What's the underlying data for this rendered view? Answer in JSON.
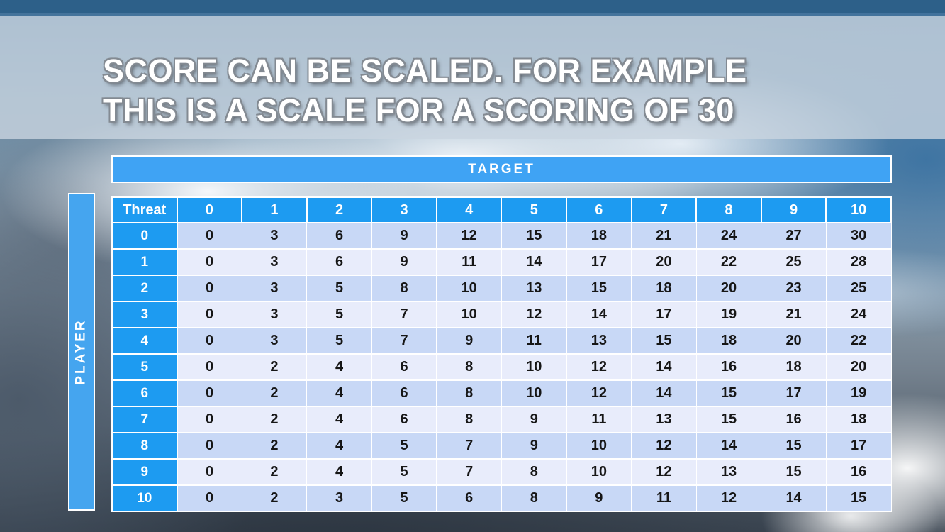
{
  "slide": {
    "title_line1": "SCORE CAN BE SCALED. FOR EXAMPLE",
    "title_line2": "THIS IS A SCALE FOR A SCORING OF 30"
  },
  "matrix": {
    "target_label": "TARGET",
    "player_label": "PLAYER",
    "corner_label": "Threat",
    "column_headers": [
      "0",
      "1",
      "2",
      "3",
      "4",
      "5",
      "6",
      "7",
      "8",
      "9",
      "10"
    ],
    "row_headers": [
      "0",
      "1",
      "2",
      "3",
      "4",
      "5",
      "6",
      "7",
      "8",
      "9",
      "10"
    ],
    "rows": [
      [
        0,
        3,
        6,
        9,
        12,
        15,
        18,
        21,
        24,
        27,
        30
      ],
      [
        0,
        3,
        6,
        9,
        11,
        14,
        17,
        20,
        22,
        25,
        28
      ],
      [
        0,
        3,
        5,
        8,
        10,
        13,
        15,
        18,
        20,
        23,
        25
      ],
      [
        0,
        3,
        5,
        7,
        10,
        12,
        14,
        17,
        19,
        21,
        24
      ],
      [
        0,
        3,
        5,
        7,
        9,
        11,
        13,
        15,
        18,
        20,
        22
      ],
      [
        0,
        2,
        4,
        6,
        8,
        10,
        12,
        14,
        16,
        18,
        20
      ],
      [
        0,
        2,
        4,
        6,
        8,
        10,
        12,
        14,
        15,
        17,
        19
      ],
      [
        0,
        2,
        4,
        6,
        8,
        9,
        11,
        13,
        15,
        16,
        18
      ],
      [
        0,
        2,
        4,
        5,
        7,
        9,
        10,
        12,
        14,
        15,
        17
      ],
      [
        0,
        2,
        4,
        5,
        7,
        8,
        10,
        12,
        13,
        15,
        16
      ],
      [
        0,
        2,
        3,
        5,
        6,
        8,
        9,
        11,
        12,
        14,
        15
      ]
    ]
  },
  "colors": {
    "top_bar": "#2d6089",
    "header_cell_blue": "#1d9bf1",
    "target_bar_blue": "#3fa3f4",
    "player_bar_blue": "#45a5ef",
    "row_even": "#c8d8f6",
    "row_odd": "#e8ecfb",
    "cell_text": "#161616",
    "title_text": "#ffffff"
  }
}
